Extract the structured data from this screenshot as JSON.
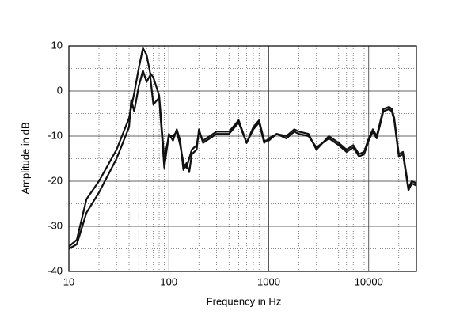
{
  "chart_data": {
    "type": "line",
    "x_label": "Frequency in Hz",
    "y_label": "Amplitude in dB",
    "x_log": true,
    "xlim": [
      10,
      30000
    ],
    "xticks": [
      10,
      100,
      1000,
      10000
    ],
    "x_minor_ticks": [
      20,
      30,
      40,
      50,
      60,
      70,
      80,
      90,
      200,
      300,
      400,
      500,
      600,
      700,
      800,
      900,
      2000,
      3000,
      4000,
      5000,
      6000,
      7000,
      8000,
      9000,
      20000
    ],
    "ylim": [
      -40,
      10
    ],
    "yticks": [
      10,
      0,
      -10,
      -20,
      -30,
      -40
    ],
    "y_minor_ticks": [
      5,
      -5,
      -15,
      -25,
      -35
    ],
    "grid": true,
    "series": [
      {
        "color": "#111111",
        "x": [
          10,
          12,
          15,
          20,
          30,
          40,
          45,
          50,
          55,
          60,
          65,
          70,
          80,
          90,
          100,
          110,
          120,
          130,
          140,
          150,
          170,
          190,
          200,
          220,
          300,
          400,
          500,
          600,
          700,
          800,
          900,
          1000,
          1200,
          1500,
          1800,
          2000,
          2500,
          3000,
          4000,
          5000,
          6000,
          7000,
          8000,
          9000,
          10000,
          11000,
          12000,
          13000,
          14000,
          16000,
          17000,
          18000,
          20000,
          22000,
          25000,
          27000,
          30000
        ],
        "values": [
          -34.5,
          -33,
          -24,
          -20,
          -13,
          -6,
          -0.5,
          5,
          9.5,
          8,
          4,
          3,
          -1,
          -15,
          -10,
          -10,
          -9,
          -12,
          -16,
          -17,
          -13,
          -12,
          -9,
          -11,
          -9,
          -9,
          -6.5,
          -11.5,
          -8,
          -6.5,
          -11,
          -11,
          -9.5,
          -10,
          -8.5,
          -9,
          -9.5,
          -13,
          -10,
          -11.5,
          -13,
          -12,
          -14,
          -13.5,
          -10.5,
          -8.5,
          -10,
          -7,
          -4,
          -3.5,
          -4,
          -6,
          -14,
          -13.5,
          -21.5,
          -20,
          -20.5
        ]
      },
      {
        "color": "#111111",
        "x": [
          10,
          12,
          15,
          20,
          30,
          40,
          42,
          45,
          50,
          55,
          60,
          65,
          70,
          80,
          90,
          100,
          110,
          120,
          130,
          140,
          150,
          160,
          170,
          190,
          200,
          220,
          300,
          400,
          500,
          600,
          700,
          800,
          900,
          1000,
          1200,
          1500,
          1800,
          2000,
          2500,
          3000,
          4000,
          5000,
          6000,
          7000,
          8000,
          9000,
          10000,
          11000,
          12000,
          13000,
          14000,
          16000,
          17000,
          18000,
          20000,
          22000,
          25000,
          27000,
          30000
        ],
        "values": [
          -35,
          -34,
          -27,
          -22.5,
          -15,
          -8,
          -2,
          -4.5,
          1,
          4.5,
          2,
          3.5,
          -3,
          -1.5,
          -17,
          -9.5,
          -11,
          -8.5,
          -11,
          -17.5,
          -16,
          -18,
          -14,
          -13,
          -8.5,
          -11.5,
          -9.5,
          -9.5,
          -7,
          -11.5,
          -8.5,
          -7,
          -11.5,
          -10.5,
          -9.5,
          -10.5,
          -9,
          -9.5,
          -10,
          -12.5,
          -10.5,
          -12,
          -13.5,
          -12.5,
          -14.5,
          -14,
          -11,
          -9,
          -10.5,
          -7.5,
          -4.5,
          -4,
          -4.5,
          -6.5,
          -14.5,
          -14,
          -22,
          -20.5,
          -21
        ]
      }
    ]
  }
}
